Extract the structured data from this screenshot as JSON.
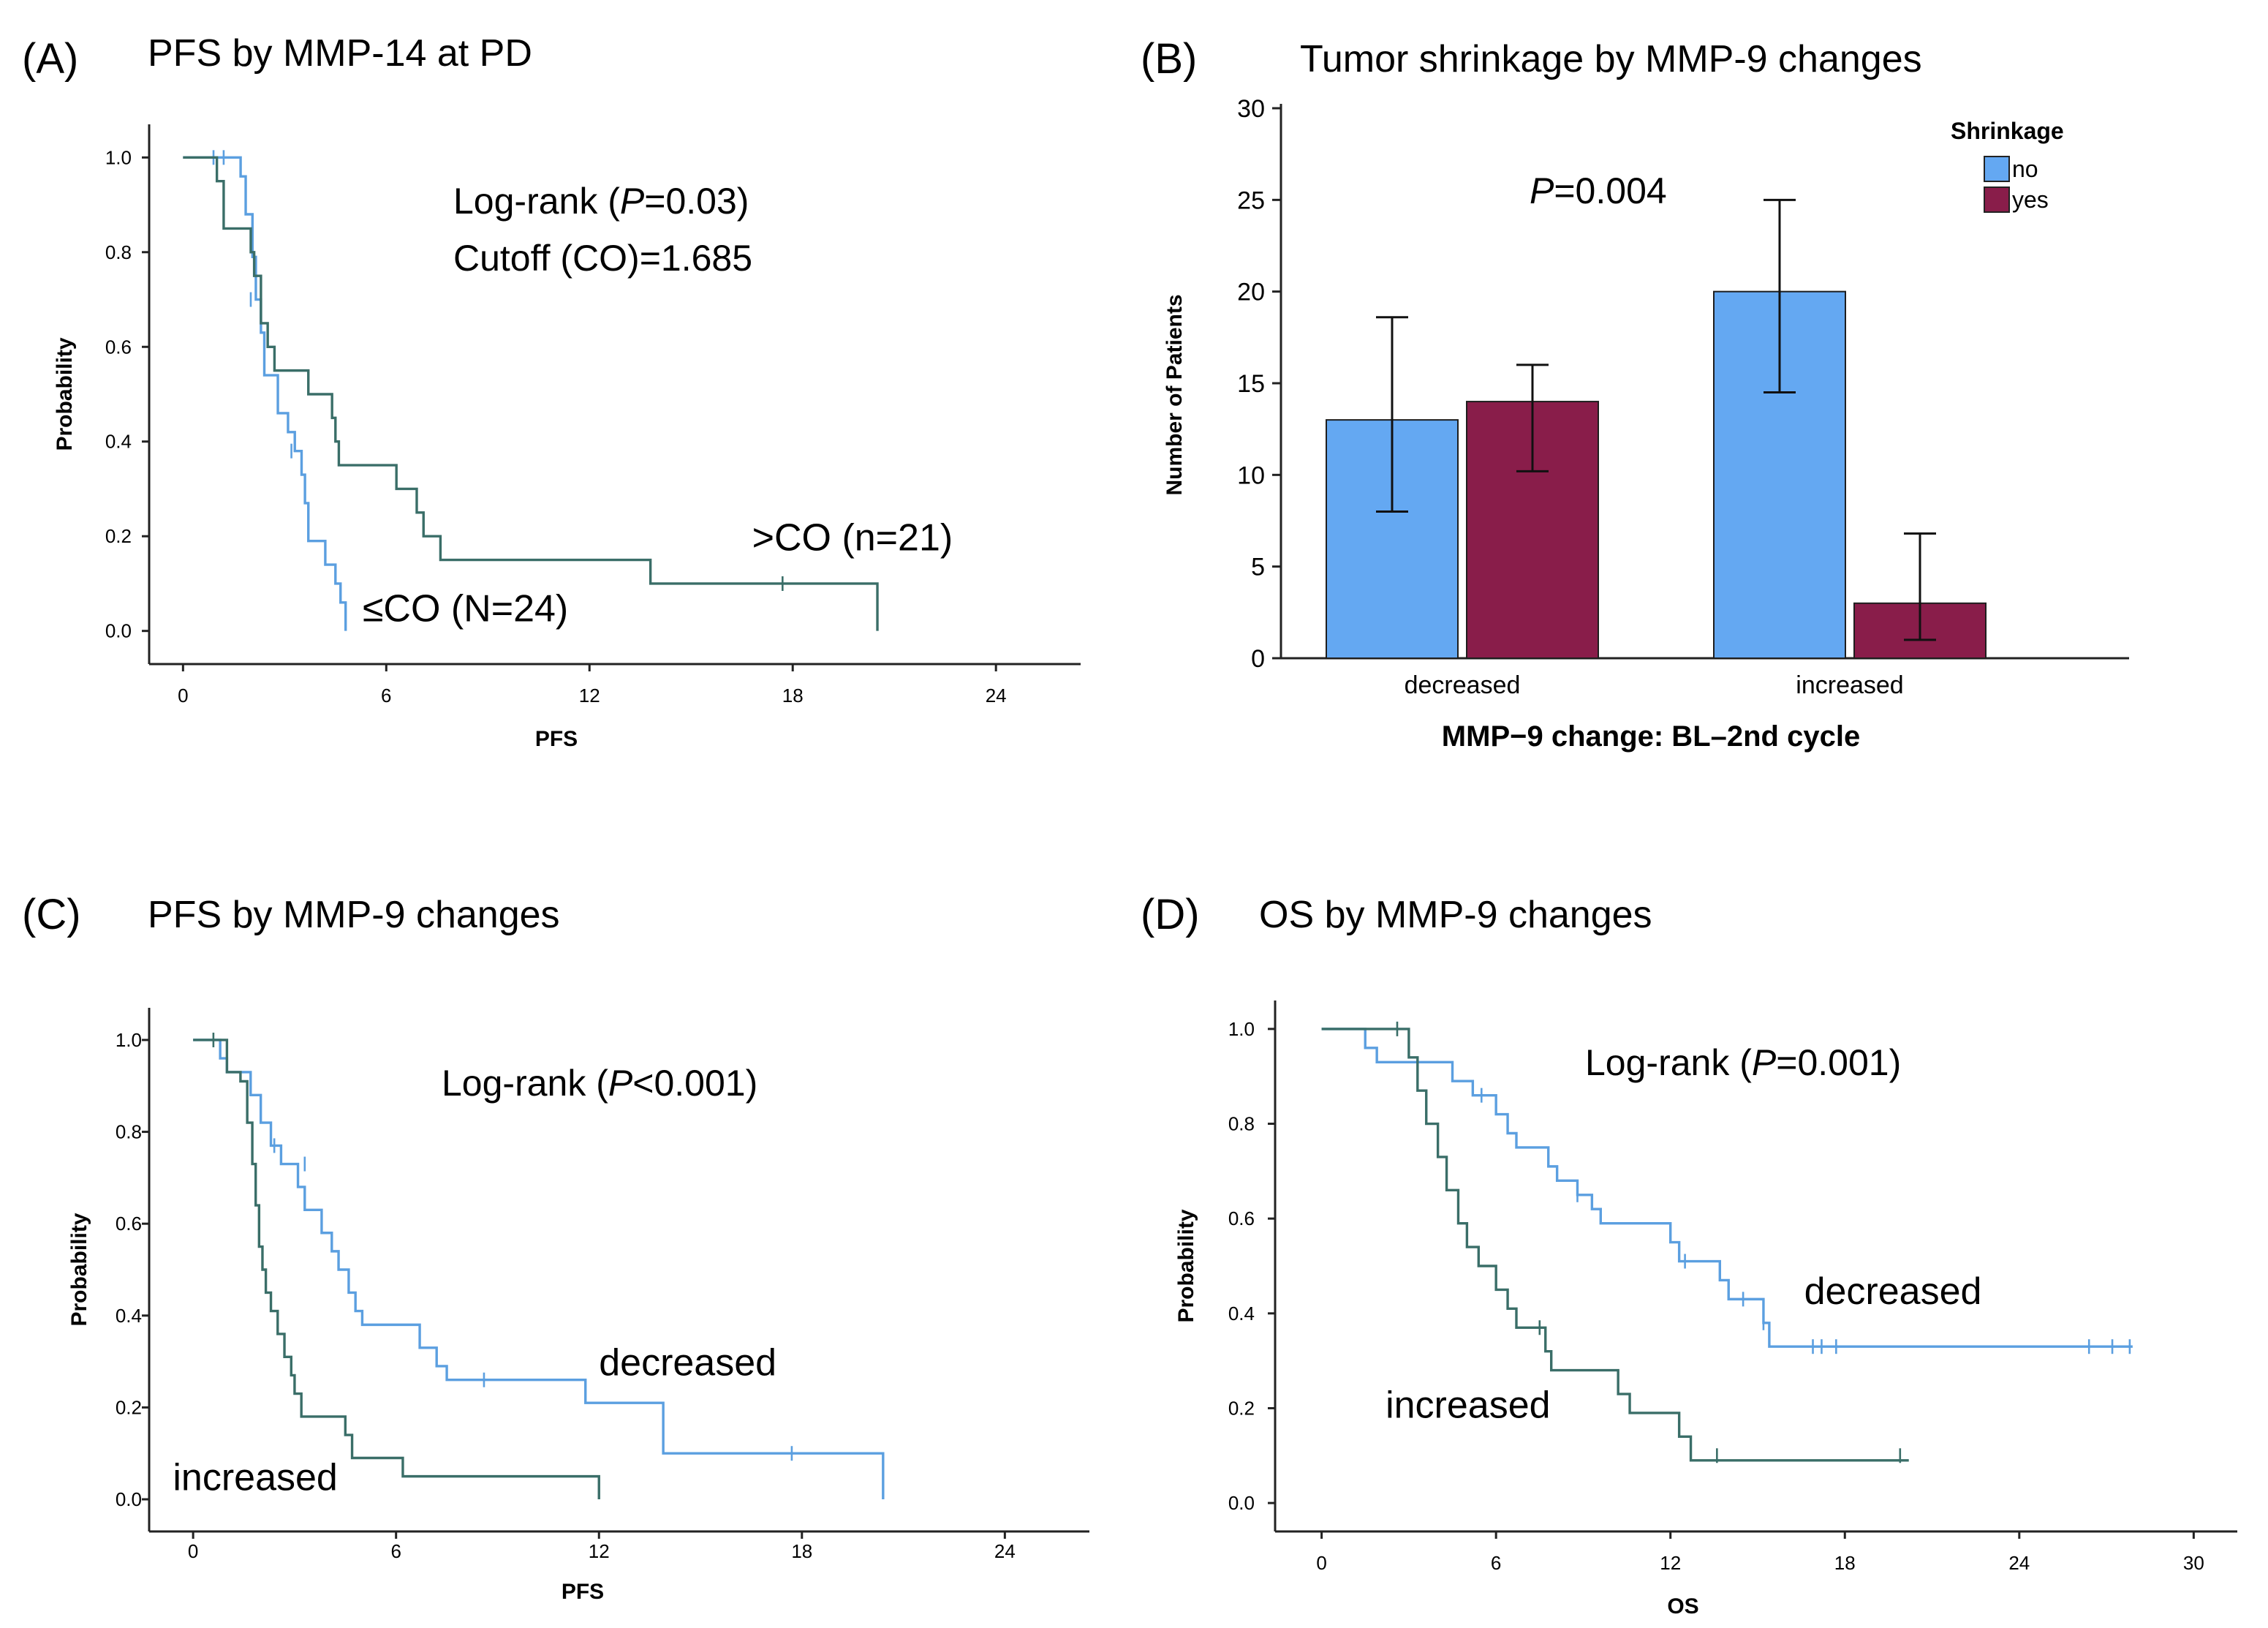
{
  "colors": {
    "blue": "#5b9fe0",
    "green": "#3a6e68",
    "bar_no": "#64a8f2",
    "bar_yes": "#891d4a",
    "text": "#000000"
  },
  "panels": {
    "A": {
      "label": "(A)",
      "title": "PFS by MMP-14 at PD"
    },
    "B": {
      "label": "(B)",
      "title": "Tumor shrinkage by MMP-9 changes"
    },
    "C": {
      "label": "(C)",
      "title": "PFS by MMP-9 changes"
    },
    "D": {
      "label": "(D)",
      "title": "OS by MMP-9 changes"
    }
  },
  "chart_data": [
    {
      "id": "A",
      "type": "line",
      "subtype": "kaplan-meier",
      "title": "PFS by MMP-14 at PD",
      "xlabel": "PFS",
      "ylabel": "Probability",
      "xlim": [
        -1,
        26.5
      ],
      "ylim": [
        -0.07,
        1.07
      ],
      "xticks": [
        0,
        6,
        12,
        18,
        24
      ],
      "yticks": [
        0.0,
        0.2,
        0.4,
        0.6,
        0.8,
        1.0
      ],
      "ytick_labels": [
        "0.0",
        "0.2",
        "0.4",
        "0.6",
        "0.8",
        "1.0"
      ],
      "annotation_parts": [
        {
          "prefix": "Log-rank (",
          "italic": "P",
          "suffix": "=0.03)"
        },
        {
          "prefix": "Cutoff (CO)=1.685",
          "italic": "",
          "suffix": ""
        }
      ],
      "series": [
        {
          "name": "≤CO (N=24)",
          "color": "blue",
          "steps": [
            [
              0,
              1.0
            ],
            [
              1.7,
              0.96
            ],
            [
              1.85,
              0.88
            ],
            [
              2.05,
              0.79
            ],
            [
              2.15,
              0.7
            ],
            [
              2.3,
              0.63
            ],
            [
              2.4,
              0.54
            ],
            [
              2.8,
              0.46
            ],
            [
              3.1,
              0.42
            ],
            [
              3.3,
              0.38
            ],
            [
              3.5,
              0.33
            ],
            [
              3.6,
              0.27
            ],
            [
              3.7,
              0.19
            ],
            [
              4.2,
              0.14
            ],
            [
              4.5,
              0.1
            ],
            [
              4.65,
              0.06
            ],
            [
              4.8,
              0.0
            ]
          ],
          "end_x": 4.8,
          "censored": [
            [
              0.9,
              1.0
            ],
            [
              1.2,
              1.0
            ],
            [
              2.0,
              0.7
            ],
            [
              3.2,
              0.38
            ]
          ],
          "label_text": "≤CO (N=24)",
          "label_at": [
            5.3,
            0.02
          ]
        },
        {
          "name": ">CO (n=21)",
          "color": "green",
          "steps": [
            [
              0,
              1.0
            ],
            [
              1.0,
              0.95
            ],
            [
              1.2,
              0.85
            ],
            [
              2.0,
              0.8
            ],
            [
              2.1,
              0.75
            ],
            [
              2.3,
              0.65
            ],
            [
              2.5,
              0.6
            ],
            [
              2.7,
              0.55
            ],
            [
              3.7,
              0.5
            ],
            [
              4.4,
              0.45
            ],
            [
              4.5,
              0.4
            ],
            [
              4.6,
              0.35
            ],
            [
              6.3,
              0.3
            ],
            [
              6.9,
              0.25
            ],
            [
              7.1,
              0.2
            ],
            [
              7.6,
              0.15
            ],
            [
              13.8,
              0.1
            ],
            [
              20.5,
              0.0
            ]
          ],
          "end_x": 20.5,
          "censored": [
            [
              17.7,
              0.1
            ]
          ],
          "label_text": ">CO (n=21)",
          "label_at": [
            16.8,
            0.17
          ]
        }
      ]
    },
    {
      "id": "B",
      "type": "bar",
      "title": "Tumor shrinkage by MMP-9 changes",
      "xlabel": "MMP−9 change: BL–2nd cycle",
      "ylabel": "Number of Patients",
      "categories": [
        "decreased",
        "increased"
      ],
      "ylim": [
        0,
        30
      ],
      "yticks": [
        0,
        5,
        10,
        15,
        20,
        25,
        30
      ],
      "legend_title": "Shrinkage",
      "legend_position": "top-right",
      "annotation_parts": [
        {
          "prefix": "",
          "italic": "P",
          "suffix": "=0.004"
        }
      ],
      "series": [
        {
          "name": "no",
          "color": "bar_no",
          "values": [
            13,
            20
          ],
          "err_low": [
            8,
            14.5
          ],
          "err_high": [
            18.6,
            25
          ]
        },
        {
          "name": "yes",
          "color": "bar_yes",
          "values": [
            14,
            3
          ],
          "err_low": [
            10.2,
            1
          ],
          "err_high": [
            16,
            6.8
          ]
        }
      ]
    },
    {
      "id": "C",
      "type": "line",
      "subtype": "kaplan-meier",
      "title": "PFS by MMP-9 changes",
      "xlabel": "PFS",
      "ylabel": "Probability",
      "xlim": [
        -1.3,
        26.5
      ],
      "ylim": [
        -0.07,
        1.07
      ],
      "xticks": [
        0,
        6,
        12,
        18,
        24
      ],
      "yticks": [
        0.0,
        0.2,
        0.4,
        0.6,
        0.8,
        1.0
      ],
      "ytick_labels": [
        "0.0",
        "0.2",
        "0.4",
        "0.6",
        "0.8",
        "1.0"
      ],
      "annotation_parts": [
        {
          "prefix": "Log-rank (",
          "italic": "P",
          "suffix": "<0.001)"
        }
      ],
      "series": [
        {
          "name": "decreased",
          "color": "blue",
          "steps": [
            [
              0,
              1.0
            ],
            [
              0.8,
              0.96
            ],
            [
              1.0,
              0.93
            ],
            [
              1.7,
              0.88
            ],
            [
              2.0,
              0.82
            ],
            [
              2.3,
              0.77
            ],
            [
              2.6,
              0.73
            ],
            [
              3.1,
              0.68
            ],
            [
              3.3,
              0.63
            ],
            [
              3.8,
              0.58
            ],
            [
              4.1,
              0.54
            ],
            [
              4.3,
              0.5
            ],
            [
              4.6,
              0.45
            ],
            [
              4.8,
              0.41
            ],
            [
              5.0,
              0.38
            ],
            [
              6.7,
              0.33
            ],
            [
              7.2,
              0.29
            ],
            [
              7.5,
              0.26
            ],
            [
              11.6,
              0.21
            ],
            [
              13.9,
              0.1
            ],
            [
              20.4,
              0.0
            ]
          ],
          "end_x": 20.4,
          "censored": [
            [
              2.4,
              0.77
            ],
            [
              3.3,
              0.73
            ],
            [
              8.6,
              0.26
            ],
            [
              17.7,
              0.1
            ]
          ],
          "label_text": "decreased",
          "label_at": [
            12.0,
            0.27
          ]
        },
        {
          "name": "increased",
          "color": "green",
          "steps": [
            [
              0,
              1.0
            ],
            [
              1.0,
              0.93
            ],
            [
              1.4,
              0.91
            ],
            [
              1.6,
              0.82
            ],
            [
              1.75,
              0.73
            ],
            [
              1.85,
              0.64
            ],
            [
              1.95,
              0.55
            ],
            [
              2.05,
              0.5
            ],
            [
              2.15,
              0.45
            ],
            [
              2.3,
              0.41
            ],
            [
              2.5,
              0.36
            ],
            [
              2.7,
              0.31
            ],
            [
              2.9,
              0.27
            ],
            [
              3.0,
              0.23
            ],
            [
              3.2,
              0.18
            ],
            [
              4.5,
              0.14
            ],
            [
              4.7,
              0.09
            ],
            [
              6.2,
              0.05
            ],
            [
              12.0,
              0.0
            ]
          ],
          "end_x": 12.0,
          "censored": [
            [
              0.6,
              1.0
            ]
          ],
          "label_text": "increased",
          "label_at": [
            -0.6,
            0.02
          ]
        }
      ]
    },
    {
      "id": "D",
      "type": "line",
      "subtype": "kaplan-meier",
      "title": "OS by MMP-9 changes",
      "xlabel": "OS",
      "ylabel": "Probability",
      "xlim": [
        -1.6,
        31.5
      ],
      "ylim": [
        -0.06,
        1.06
      ],
      "xticks": [
        0,
        6,
        12,
        18,
        24,
        30
      ],
      "yticks": [
        0.0,
        0.2,
        0.4,
        0.6,
        0.8,
        1.0
      ],
      "ytick_labels": [
        "0.0",
        "0.2",
        "0.4",
        "0.6",
        "0.8",
        "1.0"
      ],
      "annotation_parts": [
        {
          "prefix": "Log-rank (",
          "italic": "P",
          "suffix": "=0.001)"
        }
      ],
      "series": [
        {
          "name": "decreased",
          "color": "blue",
          "steps": [
            [
              0,
              1.0
            ],
            [
              1.5,
              0.96
            ],
            [
              1.9,
              0.93
            ],
            [
              4.5,
              0.89
            ],
            [
              5.2,
              0.86
            ],
            [
              6.0,
              0.82
            ],
            [
              6.4,
              0.78
            ],
            [
              6.7,
              0.75
            ],
            [
              7.8,
              0.71
            ],
            [
              8.1,
              0.68
            ],
            [
              8.8,
              0.65
            ],
            [
              9.3,
              0.62
            ],
            [
              9.6,
              0.59
            ],
            [
              12.0,
              0.55
            ],
            [
              12.3,
              0.51
            ],
            [
              13.7,
              0.47
            ],
            [
              14.0,
              0.43
            ],
            [
              15.2,
              0.38
            ],
            [
              15.4,
              0.33
            ]
          ],
          "end_x": 27.9,
          "censored": [
            [
              5.5,
              0.86
            ],
            [
              8.8,
              0.65
            ],
            [
              12.5,
              0.51
            ],
            [
              14.5,
              0.43
            ],
            [
              15.2,
              0.38
            ],
            [
              16.9,
              0.33
            ],
            [
              17.2,
              0.33
            ],
            [
              17.7,
              0.33
            ],
            [
              26.4,
              0.33
            ],
            [
              27.2,
              0.33
            ],
            [
              27.8,
              0.33
            ]
          ],
          "label_text": "decreased",
          "label_at": [
            16.6,
            0.42
          ]
        },
        {
          "name": "increased",
          "color": "green",
          "steps": [
            [
              0,
              1.0
            ],
            [
              3.0,
              0.94
            ],
            [
              3.3,
              0.87
            ],
            [
              3.6,
              0.8
            ],
            [
              4.0,
              0.73
            ],
            [
              4.3,
              0.66
            ],
            [
              4.7,
              0.59
            ],
            [
              5.0,
              0.54
            ],
            [
              5.4,
              0.5
            ],
            [
              6.0,
              0.45
            ],
            [
              6.4,
              0.41
            ],
            [
              6.7,
              0.37
            ],
            [
              7.7,
              0.32
            ],
            [
              7.9,
              0.28
            ],
            [
              10.2,
              0.23
            ],
            [
              10.6,
              0.19
            ],
            [
              12.3,
              0.14
            ],
            [
              12.7,
              0.09
            ]
          ],
          "end_x": 20.2,
          "censored": [
            [
              2.6,
              1.0
            ],
            [
              7.5,
              0.37
            ],
            [
              13.6,
              0.1
            ],
            [
              19.9,
              0.1
            ]
          ],
          "label_text": "increased",
          "label_at": [
            2.2,
            0.18
          ]
        }
      ]
    }
  ]
}
